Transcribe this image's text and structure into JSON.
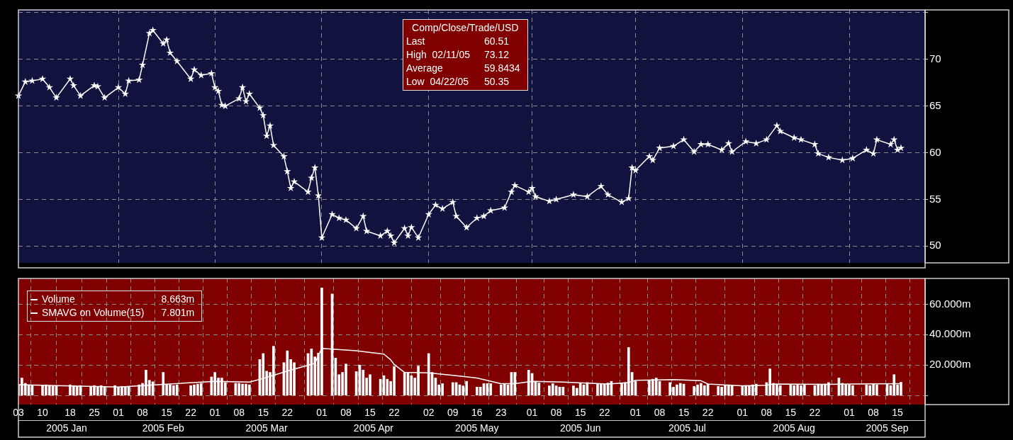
{
  "chart_data": [
    {
      "type": "line",
      "marker": "star",
      "grid": true,
      "tick_labels": "y",
      "annotations": [
        "Comp/Close/Trade/USD",
        "Last",
        "60.51",
        "High  02/11/05",
        "73.12",
        "Average",
        "59.8434",
        "Low  04/22/05",
        "50.35"
      ],
      "xlim": [
        "2005-01-03",
        "2005-09-23"
      ],
      "xticks": [
        {
          "value": "2005-02-01",
          "label": null
        },
        {
          "value": "2005-03-01",
          "label": null
        },
        {
          "value": "2005-04-01",
          "label": null
        },
        {
          "value": "2005-05-02",
          "label": null
        },
        {
          "value": "2005-06-01",
          "label": null
        },
        {
          "value": "2005-07-01",
          "label": null
        },
        {
          "value": "2005-08-01",
          "label": null
        },
        {
          "value": "2005-09-01",
          "label": null
        }
      ],
      "ylim": [
        48.2,
        75.3
      ],
      "yticks": [
        50,
        55,
        60,
        65,
        70,
        {
          "value": 75,
          "label": null
        }
      ],
      "series": [
        {
          "color": "#ffffff",
          "x": [
            "2005-01-03",
            "2005-01-05",
            "2005-01-07",
            "2005-01-10",
            "2005-01-12",
            "2005-01-14",
            "2005-01-18",
            "2005-01-19",
            "2005-01-21",
            "2005-01-25",
            "2005-01-26",
            "2005-01-28",
            "2005-02-01",
            "2005-02-03",
            "2005-02-04",
            "2005-02-07",
            "2005-02-08",
            "2005-02-10",
            "2005-02-11",
            "2005-02-14",
            "2005-02-15",
            "2005-02-16",
            "2005-02-18",
            "2005-02-22",
            "2005-02-23",
            "2005-02-25",
            "2005-02-28",
            "2005-03-01",
            "2005-03-02",
            "2005-03-03",
            "2005-03-04",
            "2005-03-08",
            "2005-03-09",
            "2005-03-10",
            "2005-03-11",
            "2005-03-14",
            "2005-03-15",
            "2005-03-16",
            "2005-03-17",
            "2005-03-18",
            "2005-03-21",
            "2005-03-22",
            "2005-03-23",
            "2005-03-24",
            "2005-03-28",
            "2005-03-29",
            "2005-03-30",
            "2005-03-31",
            "2005-04-01",
            "2005-04-04",
            "2005-04-06",
            "2005-04-08",
            "2005-04-11",
            "2005-04-13",
            "2005-04-14",
            "2005-04-18",
            "2005-04-20",
            "2005-04-21",
            "2005-04-22",
            "2005-04-25",
            "2005-04-26",
            "2005-04-27",
            "2005-04-29",
            "2005-05-02",
            "2005-05-04",
            "2005-05-06",
            "2005-05-09",
            "2005-05-10",
            "2005-05-13",
            "2005-05-16",
            "2005-05-18",
            "2005-05-20",
            "2005-05-24",
            "2005-05-26",
            "2005-05-27",
            "2005-05-31",
            "2005-06-01",
            "2005-06-02",
            "2005-06-06",
            "2005-06-08",
            "2005-06-13",
            "2005-06-17",
            "2005-06-21",
            "2005-06-23",
            "2005-06-27",
            "2005-06-29",
            "2005-06-30",
            "2005-07-01",
            "2005-07-05",
            "2005-07-06",
            "2005-07-08",
            "2005-07-12",
            "2005-07-15",
            "2005-07-18",
            "2005-07-20",
            "2005-07-22",
            "2005-07-26",
            "2005-07-28",
            "2005-07-29",
            "2005-08-02",
            "2005-08-05",
            "2005-08-08",
            "2005-08-11",
            "2005-08-12",
            "2005-08-16",
            "2005-08-18",
            "2005-08-22",
            "2005-08-23",
            "2005-08-26",
            "2005-08-30",
            "2005-09-02",
            "2005-09-06",
            "2005-09-08",
            "2005-09-09",
            "2005-09-13",
            "2005-09-14",
            "2005-09-15",
            "2005-09-16"
          ],
          "values": [
            66.1,
            67.6,
            67.7,
            67.9,
            67.0,
            65.9,
            67.9,
            67.2,
            66.1,
            67.2,
            67.1,
            65.9,
            67.0,
            66.3,
            67.7,
            67.8,
            69.4,
            72.8,
            73.12,
            71.7,
            72.1,
            70.7,
            69.8,
            67.9,
            68.9,
            68.3,
            68.5,
            67.0,
            66.6,
            65.1,
            65.0,
            65.8,
            67.0,
            65.5,
            66.3,
            64.8,
            64.0,
            61.8,
            62.9,
            60.8,
            59.6,
            58.0,
            56.2,
            56.9,
            55.8,
            57.3,
            58.4,
            55.4,
            50.9,
            53.4,
            53.0,
            52.8,
            51.9,
            53.2,
            51.6,
            51.1,
            51.6,
            51.1,
            50.35,
            51.9,
            51.1,
            52.0,
            50.9,
            53.4,
            54.4,
            54.0,
            54.7,
            53.2,
            52.0,
            53.0,
            53.2,
            53.8,
            54.1,
            55.8,
            56.5,
            55.8,
            56.2,
            55.3,
            54.8,
            55.0,
            55.5,
            55.3,
            56.4,
            55.5,
            54.7,
            55.1,
            58.4,
            58.1,
            59.6,
            59.2,
            60.5,
            60.7,
            61.4,
            60.1,
            60.9,
            60.9,
            60.3,
            61.0,
            60.1,
            61.2,
            61.0,
            61.4,
            62.9,
            62.3,
            61.6,
            61.4,
            60.9,
            59.9,
            59.5,
            59.2,
            59.4,
            60.3,
            59.9,
            61.4,
            60.9,
            61.4,
            60.3,
            60.51
          ]
        }
      ]
    },
    {
      "type": "bar",
      "grid": true,
      "legend": "top left",
      "annotations": [
        "8.663m",
        "7.801m"
      ],
      "x2lim": [
        "2005-01-03",
        "2005-09-23"
      ],
      "x2ticks": [
        {
          "value": "2005-01-17",
          "label": "2005 Jan"
        },
        {
          "value": "2005-02-14",
          "label": "2005 Feb"
        },
        {
          "value": "2005-03-16",
          "label": "2005 Mar"
        },
        {
          "value": "2005-04-16",
          "label": "2005 Apr"
        },
        {
          "value": "2005-05-16",
          "label": "2005 May"
        },
        {
          "value": "2005-06-15",
          "label": "2005 Jun"
        },
        {
          "value": "2005-07-16",
          "label": "2005 Jul"
        },
        {
          "value": "2005-08-16",
          "label": "2005 Aug"
        },
        {
          "value": "2005-09-12",
          "label": "2005 Sep"
        }
      ],
      "xlim": [
        "2005-01-03",
        "2005-09-23"
      ],
      "xticks": [
        {
          "value": "2005-01-03",
          "label": "03"
        },
        {
          "value": "2005-01-10",
          "label": "10"
        },
        {
          "value": "2005-01-18",
          "label": "18"
        },
        {
          "value": "2005-01-25",
          "label": "25"
        },
        {
          "value": "2005-02-01",
          "label": "01"
        },
        {
          "value": "2005-02-08",
          "label": "08"
        },
        {
          "value": "2005-02-15",
          "label": "15"
        },
        {
          "value": "2005-02-22",
          "label": "22"
        },
        {
          "value": "2005-03-01",
          "label": "01"
        },
        {
          "value": "2005-03-08",
          "label": "08"
        },
        {
          "value": "2005-03-15",
          "label": "15"
        },
        {
          "value": "2005-03-22",
          "label": "22"
        },
        {
          "value": "2005-04-01",
          "label": "01"
        },
        {
          "value": "2005-04-08",
          "label": "08"
        },
        {
          "value": "2005-04-15",
          "label": "15"
        },
        {
          "value": "2005-04-22",
          "label": "22"
        },
        {
          "value": "2005-05-02",
          "label": "02"
        },
        {
          "value": "2005-05-09",
          "label": "09"
        },
        {
          "value": "2005-05-16",
          "label": "16"
        },
        {
          "value": "2005-05-23",
          "label": "23"
        },
        {
          "value": "2005-06-01",
          "label": "01"
        },
        {
          "value": "2005-06-08",
          "label": "08"
        },
        {
          "value": "2005-06-15",
          "label": "15"
        },
        {
          "value": "2005-06-22",
          "label": "22"
        },
        {
          "value": "2005-07-01",
          "label": "01"
        },
        {
          "value": "2005-07-08",
          "label": "08"
        },
        {
          "value": "2005-07-15",
          "label": "15"
        },
        {
          "value": "2005-07-22",
          "label": "22"
        },
        {
          "value": "2005-08-01",
          "label": "01"
        },
        {
          "value": "2005-08-08",
          "label": "08"
        },
        {
          "value": "2005-08-15",
          "label": "15"
        },
        {
          "value": "2005-08-22",
          "label": "22"
        },
        {
          "value": "2005-09-01",
          "label": "01"
        },
        {
          "value": "2005-09-08",
          "label": "08"
        },
        {
          "value": "2005-09-15",
          "label": "15"
        },
        {
          "value": "2005-09-22",
          "label": null
        }
      ],
      "ylim": [
        -6,
        77
      ],
      "yticks": [
        {
          "value": 0,
          "label": null
        },
        {
          "value": 20,
          "label": "20.000m"
        },
        {
          "value": 40,
          "label": "40.000m"
        },
        {
          "value": 60,
          "label": "60.000m"
        }
      ],
      "series": [
        {
          "name": "Volume",
          "type": "bar",
          "color": "#ffffff",
          "x": [
            "2005-01-03",
            "2005-01-04",
            "2005-01-05",
            "2005-01-06",
            "2005-01-07",
            "2005-01-10",
            "2005-01-11",
            "2005-01-12",
            "2005-01-13",
            "2005-01-14",
            "2005-01-18",
            "2005-01-19",
            "2005-01-20",
            "2005-01-21",
            "2005-01-24",
            "2005-01-25",
            "2005-01-26",
            "2005-01-27",
            "2005-01-28",
            "2005-01-31",
            "2005-02-01",
            "2005-02-02",
            "2005-02-03",
            "2005-02-04",
            "2005-02-07",
            "2005-02-08",
            "2005-02-09",
            "2005-02-10",
            "2005-02-11",
            "2005-02-14",
            "2005-02-15",
            "2005-02-16",
            "2005-02-17",
            "2005-02-18",
            "2005-02-22",
            "2005-02-23",
            "2005-02-24",
            "2005-02-25",
            "2005-02-28",
            "2005-03-01",
            "2005-03-02",
            "2005-03-03",
            "2005-03-04",
            "2005-03-07",
            "2005-03-08",
            "2005-03-09",
            "2005-03-10",
            "2005-03-11",
            "2005-03-14",
            "2005-03-15",
            "2005-03-16",
            "2005-03-17",
            "2005-03-18",
            "2005-03-21",
            "2005-03-22",
            "2005-03-23",
            "2005-03-24",
            "2005-03-28",
            "2005-03-29",
            "2005-03-30",
            "2005-03-31",
            "2005-04-01",
            "2005-04-04",
            "2005-04-05",
            "2005-04-06",
            "2005-04-07",
            "2005-04-08",
            "2005-04-11",
            "2005-04-12",
            "2005-04-13",
            "2005-04-14",
            "2005-04-15",
            "2005-04-18",
            "2005-04-19",
            "2005-04-20",
            "2005-04-21",
            "2005-04-22",
            "2005-04-25",
            "2005-04-26",
            "2005-04-27",
            "2005-04-28",
            "2005-04-29",
            "2005-05-02",
            "2005-05-03",
            "2005-05-04",
            "2005-05-05",
            "2005-05-06",
            "2005-05-09",
            "2005-05-10",
            "2005-05-11",
            "2005-05-12",
            "2005-05-13",
            "2005-05-16",
            "2005-05-17",
            "2005-05-18",
            "2005-05-19",
            "2005-05-20",
            "2005-05-23",
            "2005-05-24",
            "2005-05-25",
            "2005-05-26",
            "2005-05-27",
            "2005-05-31",
            "2005-06-01",
            "2005-06-02",
            "2005-06-03",
            "2005-06-06",
            "2005-06-07",
            "2005-06-08",
            "2005-06-09",
            "2005-06-10",
            "2005-06-13",
            "2005-06-14",
            "2005-06-15",
            "2005-06-16",
            "2005-06-17",
            "2005-06-20",
            "2005-06-21",
            "2005-06-22",
            "2005-06-23",
            "2005-06-24",
            "2005-06-27",
            "2005-06-28",
            "2005-06-29",
            "2005-06-30",
            "2005-07-01",
            "2005-07-05",
            "2005-07-06",
            "2005-07-07",
            "2005-07-08",
            "2005-07-11",
            "2005-07-12",
            "2005-07-13",
            "2005-07-14",
            "2005-07-15",
            "2005-07-18",
            "2005-07-19",
            "2005-07-20",
            "2005-07-21",
            "2005-07-22",
            "2005-07-25",
            "2005-07-26",
            "2005-07-27",
            "2005-07-28",
            "2005-07-29",
            "2005-08-01",
            "2005-08-02",
            "2005-08-03",
            "2005-08-04",
            "2005-08-05",
            "2005-08-08",
            "2005-08-09",
            "2005-08-10",
            "2005-08-11",
            "2005-08-12",
            "2005-08-15",
            "2005-08-16",
            "2005-08-17",
            "2005-08-18",
            "2005-08-19",
            "2005-08-22",
            "2005-08-23",
            "2005-08-24",
            "2005-08-25",
            "2005-08-26",
            "2005-08-29",
            "2005-08-30",
            "2005-08-31",
            "2005-09-01",
            "2005-09-02",
            "2005-09-06",
            "2005-09-07",
            "2005-09-08",
            "2005-09-09",
            "2005-09-12",
            "2005-09-13",
            "2005-09-14",
            "2005-09-15",
            "2005-09-16"
          ],
          "values": [
            7,
            11.5,
            8,
            7,
            6.5,
            6.5,
            7,
            6.5,
            6,
            6.5,
            7,
            6.5,
            6,
            6.5,
            6,
            6.5,
            6,
            6.5,
            6,
            6.5,
            5.5,
            6,
            5.5,
            6,
            7,
            8,
            16.7,
            10,
            9,
            15.2,
            7,
            7,
            6.5,
            7,
            6.5,
            7,
            7.5,
            8,
            12.2,
            15.2,
            11.5,
            11.5,
            8.5,
            8,
            8,
            7.5,
            7.5,
            7,
            23.7,
            27.6,
            16,
            15.2,
            32.4,
            21.6,
            29.4,
            23.7,
            21.6,
            27.6,
            30.6,
            25.4,
            27.9,
            70.8,
            66.8,
            24.6,
            13.7,
            15.2,
            20.7,
            15.7,
            20,
            16.7,
            11.5,
            13.7,
            10.7,
            13,
            10.7,
            9.3,
            19,
            15.2,
            15.2,
            13,
            11.5,
            19.3,
            27.6,
            15.2,
            11.5,
            7,
            7.8,
            8.5,
            8.5,
            7,
            6.3,
            9.3,
            5.5,
            5.5,
            7.8,
            7.8,
            7.8,
            7,
            7.8,
            7,
            15.2,
            15.2,
            16.7,
            14.5,
            9.3,
            8.2,
            6.3,
            7.8,
            6.3,
            5.5,
            5.5,
            6.3,
            4.8,
            7.8,
            7,
            8.5,
            7.8,
            7.3,
            7.8,
            8.2,
            9.3,
            7.8,
            8.5,
            31.6,
            15.2,
            9.3,
            10,
            10.7,
            11.5,
            9.3,
            8.5,
            5.5,
            7,
            8,
            7.5,
            6,
            7,
            8,
            6.5,
            7.5,
            6,
            5.5,
            6.5,
            7,
            6.5,
            6,
            6.5,
            6,
            7,
            7.5,
            8.5,
            17.5,
            8,
            7,
            6.5,
            7,
            6.5,
            7,
            6.5,
            7,
            6.5,
            7.5,
            7,
            7.5,
            8.5,
            11.5,
            8,
            7,
            7,
            6.5,
            7,
            6.5,
            7.5,
            7,
            7.5,
            6.5,
            13.7,
            7,
            8.663
          ]
        },
        {
          "name": "SMAVG on Volume(15)",
          "type": "line",
          "color": "#ffffff",
          "x": [
            "2005-01-03",
            "2005-02-01",
            "2005-02-14",
            "2005-03-01",
            "2005-03-11",
            "2005-03-15",
            "2005-03-22",
            "2005-03-30",
            "2005-03-31",
            "2005-04-01",
            "2005-04-11",
            "2005-04-19",
            "2005-04-21",
            "2005-04-22",
            "2005-04-25",
            "2005-05-02",
            "2005-05-10",
            "2005-05-16",
            "2005-05-23",
            "2005-05-27",
            "2005-06-01",
            "2005-06-10",
            "2005-06-23",
            "2005-06-29",
            "2005-07-01",
            "2005-07-12",
            "2005-07-20",
            "2005-07-22",
            "2005-08-01",
            "2005-08-08",
            "2005-08-10",
            "2005-08-26",
            "2005-09-01",
            "2005-09-16"
          ],
          "values": [
            7.0,
            5.5,
            7.3,
            9.3,
            8.8,
            11.2,
            16,
            21.2,
            26.4,
            30.9,
            29.4,
            27.2,
            23.4,
            20.4,
            15.2,
            14.9,
            13,
            11.5,
            7.8,
            7.8,
            9.3,
            8.8,
            7.5,
            8.5,
            10,
            10.4,
            9.7,
            7.5,
            6.3,
            6.7,
            7.5,
            7.3,
            7.5,
            7.801
          ]
        }
      ]
    }
  ]
}
